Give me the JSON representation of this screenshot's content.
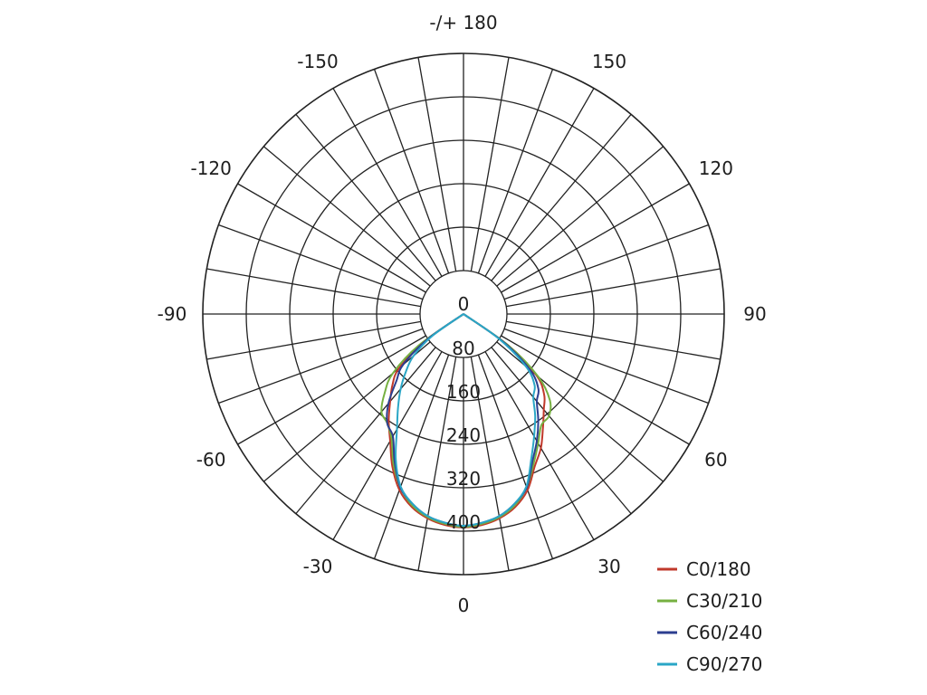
{
  "chart_data": {
    "type": "line",
    "subtype": "polar-luminous-intensity",
    "title": "",
    "radial_axis": {
      "range": [
        0,
        480
      ],
      "rings": [
        80,
        160,
        240,
        320,
        400,
        480
      ],
      "tick_labels": [
        "0",
        "80",
        "160",
        "240",
        "320",
        "400"
      ]
    },
    "angular_axis": {
      "spoke_step_deg": 10,
      "tick_labels": [
        {
          "angle": 0,
          "label": "0"
        },
        {
          "angle": 30,
          "label": "30"
        },
        {
          "angle": 60,
          "label": "60"
        },
        {
          "angle": 90,
          "label": "90"
        },
        {
          "angle": 120,
          "label": "120"
        },
        {
          "angle": 150,
          "label": "150"
        },
        {
          "angle": 180,
          "label": "-/+ 180"
        },
        {
          "angle": -150,
          "label": "-150"
        },
        {
          "angle": -120,
          "label": "-120"
        },
        {
          "angle": -90,
          "label": "-90"
        },
        {
          "angle": -60,
          "label": "-60"
        },
        {
          "angle": -30,
          "label": "-30"
        }
      ]
    },
    "legend_position": "bottom-right",
    "series": [
      {
        "name": "C0/180",
        "color": "#c0392b",
        "angles": [
          -60,
          -55,
          -50,
          -45,
          -40,
          -35,
          -30,
          -25,
          -20,
          -15,
          -10,
          -5,
          0,
          5,
          10,
          15,
          20,
          25,
          30,
          35,
          40,
          45,
          50,
          55,
          60
        ],
        "values": [
          0,
          90,
          155,
          185,
          210,
          240,
          270,
          310,
          345,
          368,
          382,
          390,
          393,
          390,
          382,
          368,
          345,
          310,
          285,
          255,
          230,
          210,
          175,
          100,
          0
        ]
      },
      {
        "name": "C30/210",
        "color": "#76b041",
        "angles": [
          -60,
          -55,
          -50,
          -45,
          -40,
          -35,
          -30,
          -25,
          -20,
          -15,
          -10,
          -5,
          0,
          5,
          10,
          15,
          20,
          25,
          30,
          35,
          40,
          45,
          50,
          55,
          60
        ],
        "values": [
          0,
          100,
          170,
          205,
          235,
          245,
          265,
          305,
          340,
          365,
          380,
          388,
          392,
          388,
          380,
          365,
          340,
          305,
          275,
          250,
          245,
          225,
          180,
          100,
          0
        ]
      },
      {
        "name": "C60/240",
        "color": "#2c3e8f",
        "angles": [
          -60,
          -55,
          -50,
          -45,
          -40,
          -35,
          -30,
          -25,
          -20,
          -15,
          -10,
          -5,
          0,
          5,
          10,
          15,
          20,
          25,
          30,
          35,
          40,
          45,
          50,
          55,
          60
        ],
        "values": [
          0,
          80,
          145,
          175,
          215,
          245,
          260,
          300,
          340,
          362,
          378,
          386,
          390,
          386,
          378,
          362,
          340,
          300,
          270,
          240,
          210,
          195,
          160,
          90,
          0
        ]
      },
      {
        "name": "C90/270",
        "color": "#2aa6c6",
        "angles": [
          -60,
          -55,
          -50,
          -45,
          -40,
          -35,
          -30,
          -25,
          -20,
          -15,
          -10,
          -5,
          0,
          5,
          10,
          15,
          20,
          25,
          30,
          35,
          40,
          45,
          50,
          55,
          60
        ],
        "values": [
          0,
          70,
          120,
          150,
          180,
          210,
          245,
          295,
          338,
          362,
          378,
          386,
          390,
          386,
          378,
          362,
          338,
          295,
          260,
          230,
          200,
          185,
          150,
          80,
          0
        ]
      }
    ]
  }
}
